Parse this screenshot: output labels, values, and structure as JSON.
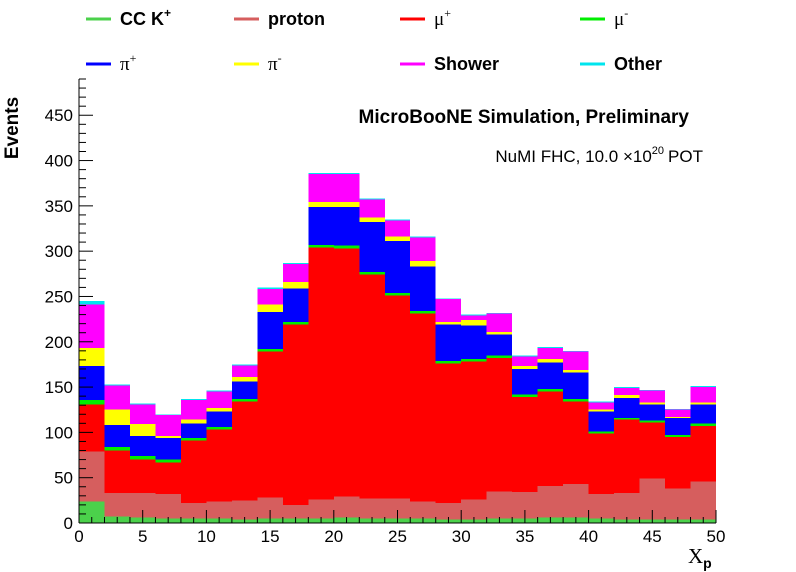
{
  "chart_data": {
    "type": "bar",
    "stacked": true,
    "title": "MicroBooNE Simulation, Preliminary",
    "subtitle_prefix": "NuMI FHC, 10.0  ×",
    "subtitle_base": "10",
    "subtitle_exp": "20",
    "subtitle_suffix": "POT",
    "xlabel_main": "X",
    "xlabel_sub": "p",
    "ylabel": "Events",
    "xlim": [
      0,
      50
    ],
    "ylim": [
      0,
      490
    ],
    "bin_width": 2,
    "xticks": [
      0,
      5,
      10,
      15,
      20,
      25,
      30,
      35,
      40,
      45,
      50
    ],
    "yticks": [
      0,
      50,
      100,
      150,
      200,
      250,
      300,
      350,
      400,
      450
    ],
    "x_bins": [
      0,
      2,
      4,
      6,
      8,
      10,
      12,
      14,
      16,
      18,
      20,
      22,
      24,
      26,
      28,
      30,
      32,
      34,
      36,
      38,
      40,
      42,
      44,
      46,
      48
    ],
    "series": [
      {
        "name": "CC K⁺",
        "color": "#4bd14b",
        "values": [
          24,
          7,
          6,
          5,
          5,
          5,
          4,
          5,
          5,
          5,
          6,
          5,
          5,
          5,
          4,
          4,
          5,
          5,
          6,
          6,
          5,
          4,
          4,
          4,
          4
        ]
      },
      {
        "name": "proton",
        "color": "#d65e5e",
        "values": [
          55,
          26,
          27,
          27,
          17,
          19,
          21,
          23,
          15,
          21,
          23,
          22,
          22,
          19,
          18,
          22,
          30,
          29,
          35,
          37,
          27,
          29,
          45,
          34,
          42
        ]
      },
      {
        "name": "μ⁺",
        "color": "#ff0000",
        "values": [
          52,
          47,
          37,
          35,
          69,
          79,
          109,
          161,
          199,
          278,
          274,
          247,
          224,
          207,
          154,
          152,
          147,
          105,
          104,
          91,
          67,
          81,
          62,
          57,
          61
        ]
      },
      {
        "name": "μ⁻",
        "color": "#00ee00",
        "values": [
          5,
          4,
          4,
          3,
          3,
          3,
          3,
          3,
          3,
          3,
          3,
          3,
          3,
          3,
          3,
          3,
          3,
          3,
          3,
          3,
          2,
          2,
          2,
          2,
          3
        ]
      },
      {
        "name": "π⁺",
        "color": "#0000ff",
        "values": [
          37,
          24,
          22,
          24,
          16,
          17,
          19,
          41,
          37,
          42,
          43,
          55,
          57,
          49,
          40,
          37,
          23,
          28,
          29,
          29,
          22,
          22,
          18,
          19,
          21
        ]
      },
      {
        "name": "π⁻",
        "color": "#ffff00",
        "values": [
          20,
          17,
          13,
          2,
          4,
          4,
          5,
          8,
          7,
          5,
          5,
          5,
          5,
          6,
          3,
          6,
          3,
          3,
          4,
          3,
          2,
          3,
          2,
          1,
          2
        ]
      },
      {
        "name": "Shower",
        "color": "#ff00ff",
        "values": [
          48,
          27,
          22,
          23,
          22,
          18,
          13,
          17,
          20,
          31,
          31,
          20,
          18,
          26,
          25,
          5,
          20,
          11,
          12,
          20,
          8,
          8,
          13,
          8,
          17
        ]
      },
      {
        "name": "Other",
        "color": "#00e5ee",
        "values": [
          4,
          1,
          1,
          1,
          1,
          1,
          1,
          2,
          1,
          1,
          1,
          1,
          1,
          1,
          1,
          1,
          1,
          1,
          1,
          1,
          1,
          1,
          1,
          1,
          1
        ]
      }
    ],
    "legend": [
      {
        "label": "CC K",
        "sup": "+",
        "font": "sans",
        "color": "#4bd14b"
      },
      {
        "label": "proton",
        "sup": "",
        "font": "sans",
        "color": "#d65e5e"
      },
      {
        "label": "μ",
        "sup": "+",
        "font": "serif",
        "color": "#ff0000"
      },
      {
        "label": "μ",
        "sup": "-",
        "font": "serif",
        "color": "#00ee00"
      },
      {
        "label": "π",
        "sup": "+",
        "font": "serif",
        "color": "#0000ff"
      },
      {
        "label": "π",
        "sup": "-",
        "font": "serif",
        "color": "#ffff00"
      },
      {
        "label": "Shower",
        "sup": "",
        "font": "sans",
        "color": "#ff00ff"
      },
      {
        "label": "Other",
        "sup": "",
        "font": "sans",
        "color": "#00e5ee"
      }
    ],
    "legend_placement": "top, above plot, 4 columns x 2 rows",
    "grid": false
  }
}
